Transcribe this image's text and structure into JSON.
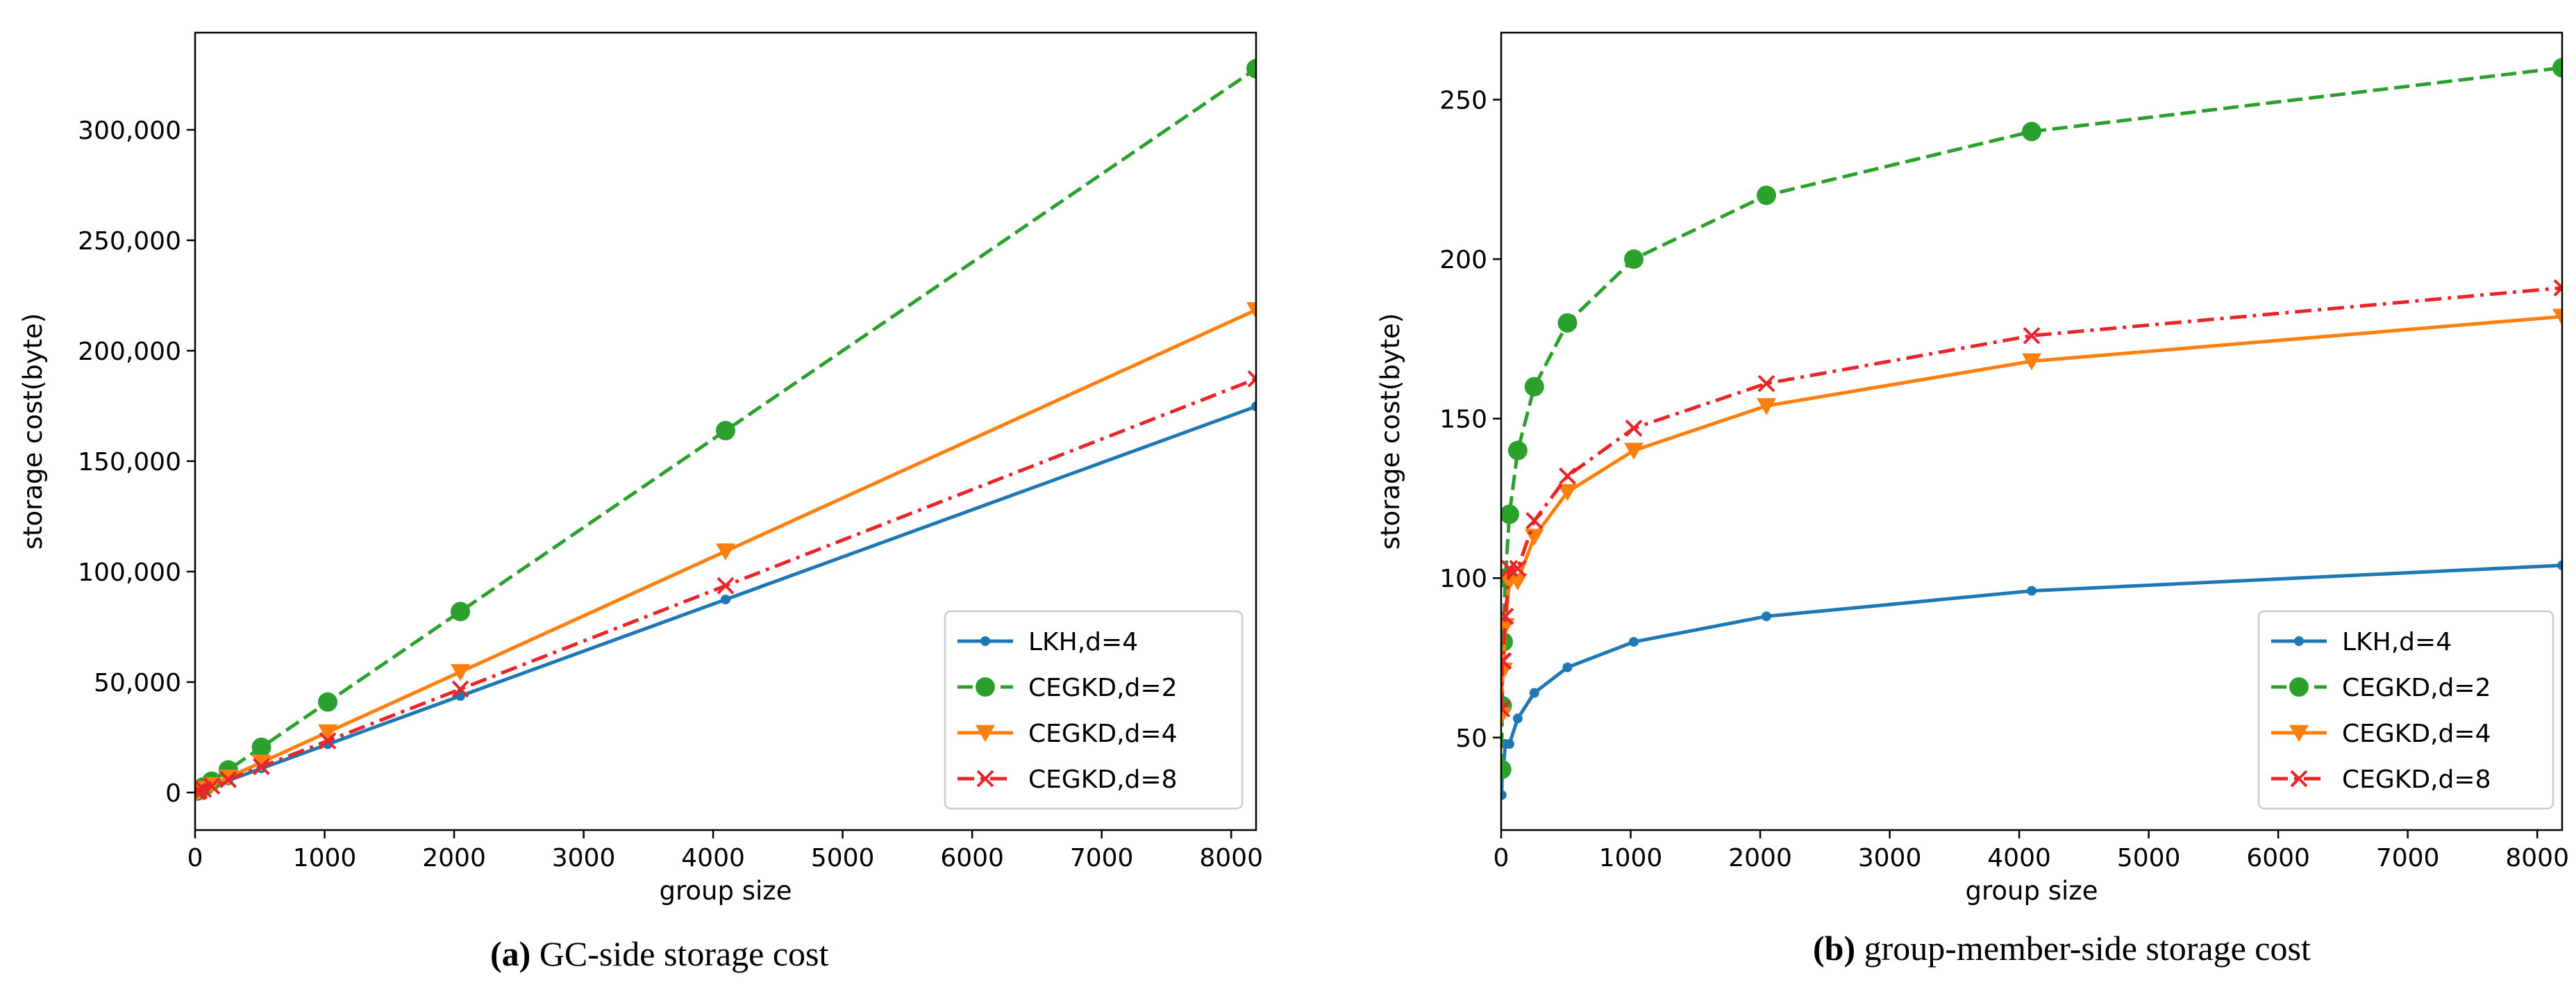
{
  "chart_data": [
    {
      "type": "line",
      "caption_label": "(a)",
      "caption_text": " GC-side storage cost",
      "xlabel": "group size",
      "ylabel": "storage cost(byte)",
      "xlim": [
        0,
        8192
      ],
      "ylim": [
        -17000,
        344000
      ],
      "xticks": [
        0,
        1000,
        2000,
        3000,
        4000,
        5000,
        6000,
        7000,
        8000
      ],
      "xtick_labels": [
        "0",
        "1000",
        "2000",
        "3000",
        "4000",
        "5000",
        "6000",
        "7000",
        "8000"
      ],
      "yticks": [
        0,
        50000,
        100000,
        150000,
        200000,
        250000,
        300000
      ],
      "ytick_labels": [
        "0",
        "50,000",
        "100,000",
        "150,000",
        "200,000",
        "250,000",
        "300,000"
      ],
      "legend_position": "lower right",
      "x": [
        16,
        32,
        64,
        128,
        256,
        512,
        1024,
        2048,
        4096,
        8192
      ],
      "series": [
        {
          "name": "LKH,d=4",
          "color": "#1f77b4",
          "marker": "dot",
          "dash": "solid",
          "values": [
            341,
            683,
            1365,
            2731,
            5461,
            10923,
            21845,
            43691,
            87381,
            174763
          ]
        },
        {
          "name": "CEGKD,d=2",
          "color": "#2ca02c",
          "marker": "circle",
          "dash": "dashed",
          "values": [
            640,
            1280,
            2560,
            5120,
            10240,
            20480,
            40960,
            81920,
            163840,
            327680
          ]
        },
        {
          "name": "CEGKD,d=4",
          "color": "#ff7f0e",
          "marker": "triangle",
          "dash": "solid",
          "values": [
            427,
            853,
            1707,
            3413,
            6827,
            13653,
            27307,
            54613,
            109227,
            218453
          ]
        },
        {
          "name": "CEGKD,d=8",
          "color": "#e8262a",
          "marker": "x",
          "dash": "dashdot",
          "values": [
            366,
            731,
            1463,
            2926,
            5851,
            11703,
            23406,
            46811,
            93623,
            187246
          ]
        }
      ]
    },
    {
      "type": "line",
      "caption_label": "(b)",
      "caption_text": " group-member-side storage cost",
      "xlabel": "group size",
      "ylabel": "storage cost(byte)",
      "xlim": [
        0,
        8192
      ],
      "ylim": [
        21,
        271
      ],
      "xticks": [
        0,
        1000,
        2000,
        3000,
        4000,
        5000,
        6000,
        7000,
        8000
      ],
      "xtick_labels": [
        "0",
        "1000",
        "2000",
        "3000",
        "4000",
        "5000",
        "6000",
        "7000",
        "8000"
      ],
      "yticks": [
        50,
        100,
        150,
        200,
        250
      ],
      "ytick_labels": [
        "50",
        "100",
        "150",
        "200",
        "250"
      ],
      "legend_position": "lower right",
      "x": [
        4,
        8,
        16,
        32,
        64,
        128,
        256,
        512,
        1024,
        2048,
        4096,
        8192
      ],
      "series": [
        {
          "name": "LKH,d=4",
          "color": "#1f77b4",
          "marker": "dot",
          "dash": "solid",
          "values": [
            32,
            40,
            40,
            48,
            48,
            56,
            64,
            72,
            80,
            88,
            96,
            104
          ]
        },
        {
          "name": "CEGKD,d=2",
          "color": "#2ca02c",
          "marker": "circle",
          "dash": "dashed",
          "values": [
            40,
            60,
            80,
            100,
            120,
            140,
            160,
            180,
            200,
            220,
            240,
            260
          ]
        },
        {
          "name": "CEGKD,d=4",
          "color": "#ff7f0e",
          "marker": "triangle",
          "dash": "solid",
          "values": [
            57,
            71,
            71,
            85,
            99,
            99,
            113,
            127,
            140,
            154,
            168,
            182
          ]
        },
        {
          "name": "CEGKD,d=8",
          "color": "#e8262a",
          "marker": "x",
          "dash": "dashdot",
          "values": [
            59,
            74,
            74,
            88,
            103,
            103,
            118,
            132,
            147,
            161,
            176,
            191
          ]
        }
      ]
    }
  ]
}
